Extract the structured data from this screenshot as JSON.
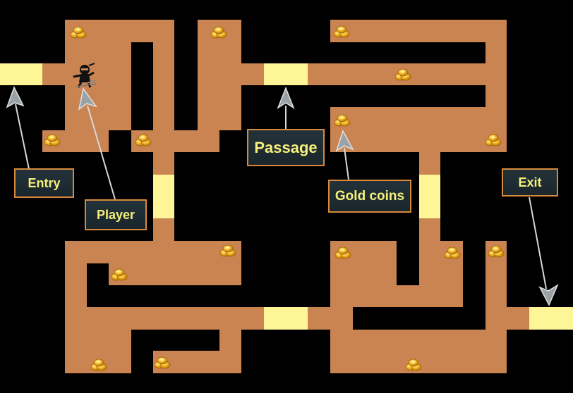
{
  "game": {
    "labels": {
      "entry": "Entry",
      "player": "Player",
      "passage": "Passage",
      "gold_coins": "Gold coins",
      "exit": "Exit"
    },
    "colors": {
      "background": "#000000",
      "path": "#c98452",
      "passage": "#fdf596",
      "label_bg": "#1f2d33",
      "label_border": "#d88a3a",
      "label_text": "#f5f07a",
      "coin": "#f2b21c"
    },
    "icons": [
      "ninja-player-icon",
      "gold-coin-icon",
      "arrow-icon"
    ]
  }
}
